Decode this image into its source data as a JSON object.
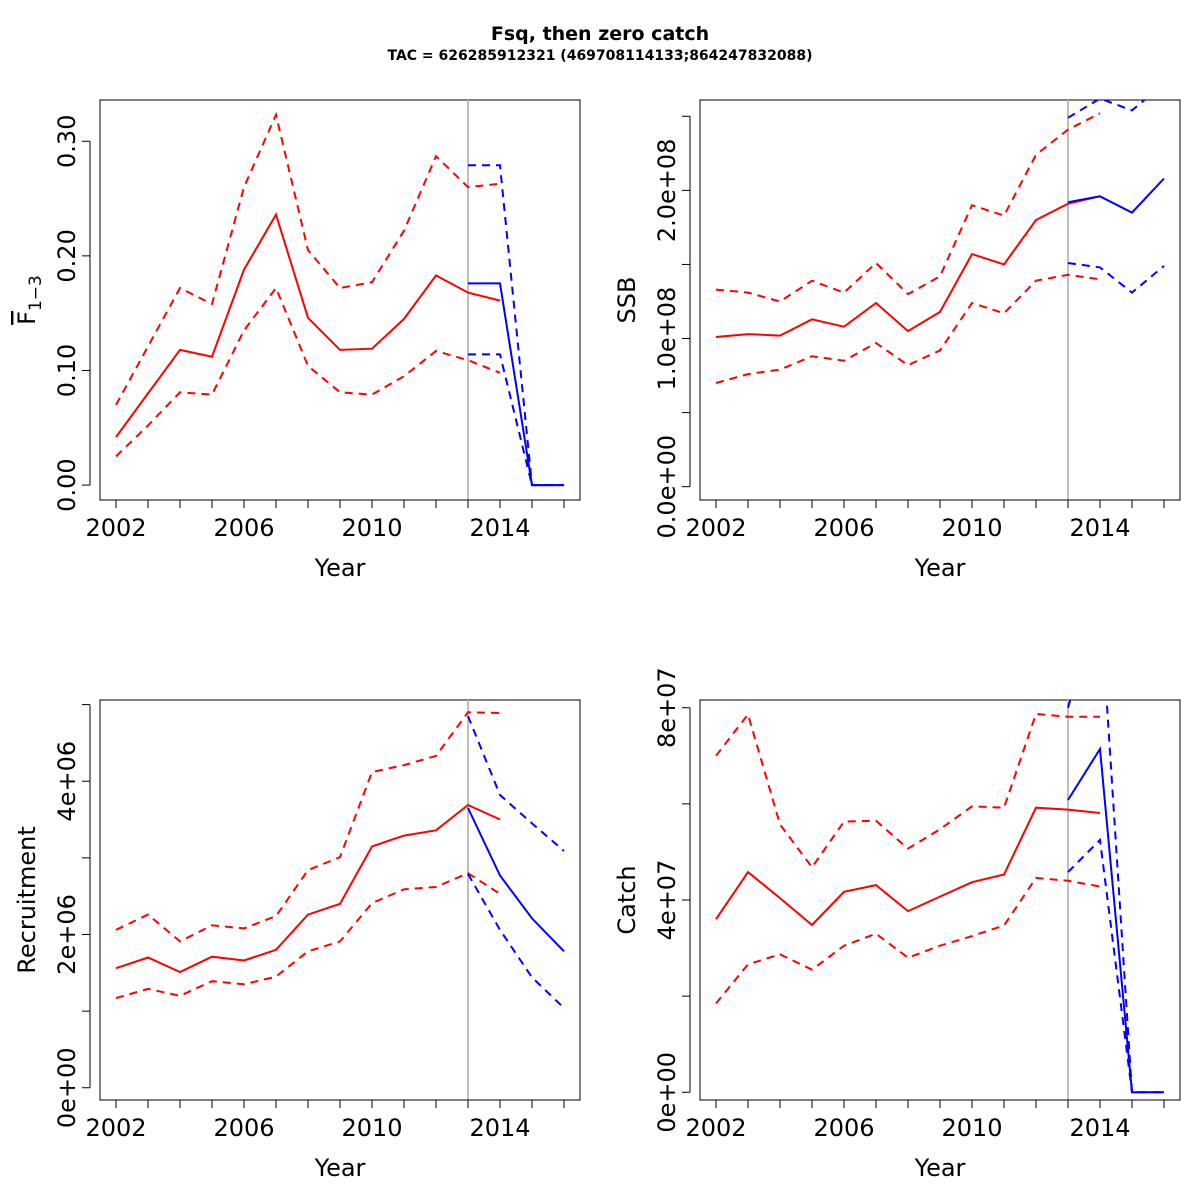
{
  "figure": {
    "title": "Fsq, then zero catch",
    "subtitle": "TAC = 626285912321 (469708114133;864247832088)"
  },
  "colors": {
    "history": "#ff0000",
    "projection": "#0000ff",
    "divider": "#bebebe",
    "axis": "#000000"
  },
  "chart_data": [
    {
      "type": "line",
      "panel": "F",
      "xlabel": "Year",
      "ylabel_main": "F",
      "ylabel_sub": "1−3",
      "xlim": [
        2001.5,
        2016.5
      ],
      "ylim": [
        -0.013,
        0.336
      ],
      "xticks": [
        2002,
        2003,
        2004,
        2005,
        2006,
        2007,
        2008,
        2009,
        2010,
        2011,
        2012,
        2013,
        2014,
        2015,
        2016
      ],
      "xtick_labels": [
        "2002",
        "2006",
        "2010",
        "2014"
      ],
      "yticks": [
        0,
        0.1,
        0.2,
        0.3
      ],
      "ytick_labels": [
        "0.00",
        "0.10",
        "0.20",
        "0.30"
      ],
      "divider_x": 2013,
      "series": [
        {
          "role": "history",
          "style": "solid",
          "x": [
            2002,
            2003,
            2004,
            2005,
            2006,
            2007,
            2008,
            2009,
            2010,
            2011,
            2012,
            2013,
            2014
          ],
          "values": [
            0.042,
            0.08,
            0.118,
            0.112,
            0.188,
            0.236,
            0.146,
            0.118,
            0.119,
            0.145,
            0.183,
            0.168,
            0.161
          ]
        },
        {
          "role": "history",
          "style": "dashed",
          "x": [
            2002,
            2003,
            2004,
            2005,
            2006,
            2007,
            2008,
            2009,
            2010,
            2011,
            2012,
            2013,
            2014
          ],
          "values": [
            0.07,
            0.121,
            0.172,
            0.158,
            0.26,
            0.323,
            0.205,
            0.172,
            0.177,
            0.222,
            0.287,
            0.26,
            0.263
          ]
        },
        {
          "role": "history",
          "style": "dashed",
          "x": [
            2002,
            2003,
            2004,
            2005,
            2006,
            2007,
            2008,
            2009,
            2010,
            2011,
            2012,
            2013,
            2014
          ],
          "values": [
            0.025,
            0.052,
            0.081,
            0.079,
            0.135,
            0.172,
            0.104,
            0.081,
            0.079,
            0.095,
            0.117,
            0.109,
            0.098
          ]
        },
        {
          "role": "projection",
          "style": "solid",
          "x": [
            2013,
            2014,
            2015,
            2016
          ],
          "values": [
            0.176,
            0.176,
            0.0,
            0.0
          ]
        },
        {
          "role": "projection",
          "style": "dashed",
          "x": [
            2013,
            2014,
            2015,
            2016
          ],
          "values": [
            0.279,
            0.279,
            0.0,
            0.0
          ]
        },
        {
          "role": "projection",
          "style": "dashed",
          "x": [
            2013,
            2014,
            2015,
            2016
          ],
          "values": [
            0.114,
            0.114,
            0.0,
            0.0
          ]
        }
      ]
    },
    {
      "type": "line",
      "panel": "SSB",
      "xlabel": "Year",
      "ylabel_main": "SSB",
      "ylabel_sub": "",
      "xlim": [
        2001.5,
        2016.5
      ],
      "ylim": [
        -9000000,
        261000000
      ],
      "xticks": [
        2002,
        2003,
        2004,
        2005,
        2006,
        2007,
        2008,
        2009,
        2010,
        2011,
        2012,
        2013,
        2014,
        2015,
        2016
      ],
      "xtick_labels": [
        "2002",
        "2006",
        "2010",
        "2014"
      ],
      "yticks": [
        0,
        50000000,
        100000000,
        150000000,
        200000000,
        250000000
      ],
      "ytick_labels": [
        "0.0e+00",
        "",
        "1.0e+08",
        "",
        "2.0e+08",
        ""
      ],
      "divider_x": 2013,
      "series": [
        {
          "role": "history",
          "style": "solid",
          "x": [
            2002,
            2003,
            2004,
            2005,
            2006,
            2007,
            2008,
            2009,
            2010,
            2011,
            2012,
            2013,
            2014
          ],
          "values": [
            101000000,
            103000000,
            102000000,
            113000000,
            108000000,
            124000000,
            105000000,
            118000000,
            157000000,
            150000000,
            180000000,
            191000000,
            196000000
          ]
        },
        {
          "role": "history",
          "style": "dashed",
          "x": [
            2002,
            2003,
            2004,
            2005,
            2006,
            2007,
            2008,
            2009,
            2010,
            2011,
            2012,
            2013,
            2014
          ],
          "values": [
            133000000,
            131000000,
            125000000,
            139000000,
            131000000,
            151000000,
            130000000,
            142000000,
            190000000,
            183000000,
            224000000,
            241000000,
            252000000
          ]
        },
        {
          "role": "history",
          "style": "dashed",
          "x": [
            2002,
            2003,
            2004,
            2005,
            2006,
            2007,
            2008,
            2009,
            2010,
            2011,
            2012,
            2013,
            2014
          ],
          "values": [
            70000000,
            76000000,
            79000000,
            88000000,
            85000000,
            97000000,
            82000000,
            92000000,
            124000000,
            117000000,
            139000000,
            143000000,
            140000000
          ]
        },
        {
          "role": "projection",
          "style": "solid",
          "x": [
            2013,
            2014,
            2015,
            2016
          ],
          "values": [
            192000000,
            196000000,
            185000000,
            208000000
          ]
        },
        {
          "role": "projection",
          "style": "dashed",
          "x": [
            2013,
            2014,
            2015,
            2016
          ],
          "values": [
            249000000,
            262000000,
            254000000,
            272000000
          ]
        },
        {
          "role": "projection",
          "style": "dashed",
          "x": [
            2013,
            2014,
            2015,
            2016
          ],
          "values": [
            151000000,
            148000000,
            131000000,
            149000000
          ]
        }
      ]
    },
    {
      "type": "line",
      "panel": "Recruitment",
      "xlabel": "Year",
      "ylabel_main": "Recruitment",
      "ylabel_sub": "",
      "xlim": [
        2001.5,
        2016.5
      ],
      "ylim": [
        -160000,
        5060000
      ],
      "xticks": [
        2002,
        2003,
        2004,
        2005,
        2006,
        2007,
        2008,
        2009,
        2010,
        2011,
        2012,
        2013,
        2014,
        2015,
        2016
      ],
      "xtick_labels": [
        "2002",
        "2006",
        "2010",
        "2014"
      ],
      "yticks": [
        0,
        1000000,
        2000000,
        3000000,
        4000000,
        5000000
      ],
      "ytick_labels": [
        "0e+00",
        "",
        "2e+06",
        "",
        "4e+06",
        ""
      ],
      "divider_x": 2013,
      "series": [
        {
          "role": "history",
          "style": "solid",
          "x": [
            2002,
            2003,
            2004,
            2005,
            2006,
            2007,
            2008,
            2009,
            2010,
            2011,
            2012,
            2013,
            2014
          ],
          "values": [
            1560000,
            1700000,
            1510000,
            1710000,
            1660000,
            1800000,
            2260000,
            2400000,
            3150000,
            3290000,
            3360000,
            3690000,
            3500000
          ]
        },
        {
          "role": "history",
          "style": "dashed",
          "x": [
            2002,
            2003,
            2004,
            2005,
            2006,
            2007,
            2008,
            2009,
            2010,
            2011,
            2012,
            2013,
            2014
          ],
          "values": [
            2060000,
            2260000,
            1910000,
            2120000,
            2080000,
            2240000,
            2840000,
            3010000,
            4120000,
            4210000,
            4330000,
            4900000,
            4890000
          ]
        },
        {
          "role": "history",
          "style": "dashed",
          "x": [
            2002,
            2003,
            2004,
            2005,
            2006,
            2007,
            2008,
            2009,
            2010,
            2011,
            2012,
            2013,
            2014
          ],
          "values": [
            1170000,
            1290000,
            1200000,
            1390000,
            1350000,
            1450000,
            1780000,
            1910000,
            2410000,
            2590000,
            2620000,
            2800000,
            2530000
          ]
        },
        {
          "role": "projection",
          "style": "solid",
          "x": [
            2013,
            2014,
            2015,
            2016
          ],
          "values": [
            3650000,
            2770000,
            2210000,
            1780000
          ]
        },
        {
          "role": "projection",
          "style": "dashed",
          "x": [
            2013,
            2014,
            2015,
            2016
          ],
          "values": [
            4850000,
            3820000,
            3450000,
            3090000
          ]
        },
        {
          "role": "projection",
          "style": "dashed",
          "x": [
            2013,
            2014,
            2015,
            2016
          ],
          "values": [
            2790000,
            2060000,
            1440000,
            1040000
          ]
        }
      ]
    },
    {
      "type": "line",
      "panel": "Catch",
      "xlabel": "Year",
      "ylabel_main": "Catch",
      "ylabel_sub": "",
      "xlim": [
        2001.5,
        2016.5
      ],
      "ylim": [
        -1600000,
        81600000
      ],
      "xticks": [
        2002,
        2003,
        2004,
        2005,
        2006,
        2007,
        2008,
        2009,
        2010,
        2011,
        2012,
        2013,
        2014,
        2015,
        2016
      ],
      "xtick_labels": [
        "2002",
        "2006",
        "2010",
        "2014"
      ],
      "yticks": [
        0,
        20000000,
        40000000,
        60000000,
        80000000
      ],
      "ytick_labels": [
        "0e+00",
        "",
        "4e+07",
        "",
        "8e+07"
      ],
      "divider_x": 2013,
      "series": [
        {
          "role": "history",
          "style": "solid",
          "x": [
            2002,
            2003,
            2004,
            2005,
            2006,
            2007,
            2008,
            2009,
            2010,
            2011,
            2012,
            2013,
            2014
          ],
          "values": [
            36000000,
            45800000,
            40400000,
            34800000,
            41700000,
            43100000,
            37700000,
            40700000,
            43700000,
            45300000,
            59200000,
            58800000,
            58100000
          ]
        },
        {
          "role": "history",
          "style": "dashed",
          "x": [
            2002,
            2003,
            2004,
            2005,
            2006,
            2007,
            2008,
            2009,
            2010,
            2011,
            2012,
            2013,
            2014
          ],
          "values": [
            70000000,
            78600000,
            55700000,
            46800000,
            56300000,
            56500000,
            50700000,
            54700000,
            59500000,
            59200000,
            78700000,
            78100000,
            78100000
          ]
        },
        {
          "role": "history",
          "style": "dashed",
          "x": [
            2002,
            2003,
            2004,
            2005,
            2006,
            2007,
            2008,
            2009,
            2010,
            2011,
            2012,
            2013,
            2014
          ],
          "values": [
            18500000,
            26600000,
            28700000,
            25500000,
            30500000,
            33000000,
            28000000,
            30500000,
            32500000,
            34700000,
            44600000,
            44000000,
            42800000
          ]
        },
        {
          "role": "projection",
          "style": "solid",
          "x": [
            2013,
            2014,
            2015,
            2016
          ],
          "values": [
            60800000,
            71400000,
            0,
            0
          ]
        },
        {
          "role": "projection",
          "style": "dashed",
          "x": [
            2013,
            2014,
            2015,
            2016
          ],
          "values": [
            80000000,
            103000000,
            0,
            0
          ]
        },
        {
          "role": "projection",
          "style": "dashed",
          "x": [
            2013,
            2014,
            2015,
            2016
          ],
          "values": [
            45800000,
            52500000,
            0,
            0
          ]
        }
      ]
    }
  ]
}
